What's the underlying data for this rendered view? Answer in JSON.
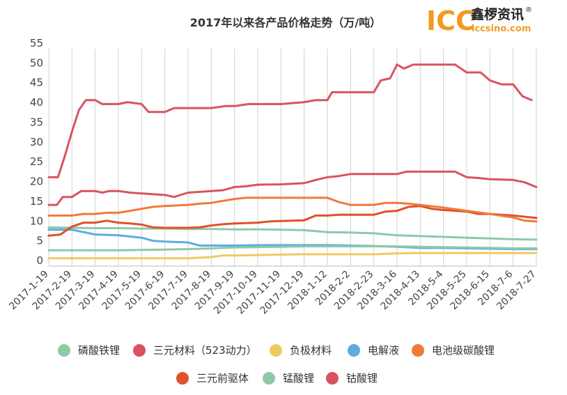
{
  "chart_data": {
    "type": "line",
    "title": "2017年以来各产品价格走势（万/吨）",
    "ylim": [
      0,
      55
    ],
    "yticks": [
      0,
      5,
      10,
      15,
      20,
      25,
      30,
      35,
      40,
      45,
      50,
      55
    ],
    "grid": "vertical",
    "legend_position": "bottom",
    "x_labels": [
      "2017-1-19",
      "2017-2-19",
      "2017-3-19",
      "2017-4-19",
      "2017-5-19",
      "2017-6-19",
      "2017-7-19",
      "2017-8-19",
      "2017-9-19",
      "2017-10-19",
      "2017-11-19",
      "2017-12-19",
      "2018-1-12",
      "2018-2-2",
      "2018-2-23",
      "2018-3-16",
      "2018-4-13",
      "2018-5-4",
      "2018-5-25",
      "2018-6-15",
      "2018-7-6",
      "2018-7-27"
    ],
    "series": [
      {
        "name": "磷酸铁锂",
        "color": "#8fc9a6",
        "values": [
          [
            0,
            9.8
          ],
          [
            1,
            9.7
          ],
          [
            2,
            9.6
          ],
          [
            3,
            9.6
          ],
          [
            4,
            9.5
          ],
          [
            5,
            9.5
          ],
          [
            6,
            9.4
          ],
          [
            7,
            9.4
          ],
          [
            8,
            9.3
          ],
          [
            9,
            9.3
          ],
          [
            10,
            9.2
          ],
          [
            11,
            9.1
          ],
          [
            12,
            8.6
          ],
          [
            13,
            8.5
          ],
          [
            14,
            8.3
          ],
          [
            15,
            7.8
          ],
          [
            16,
            7.6
          ],
          [
            17,
            7.4
          ],
          [
            18,
            7.2
          ],
          [
            19,
            7.0
          ],
          [
            20,
            6.8
          ],
          [
            21,
            6.7
          ]
        ]
      },
      {
        "name": "三元材料（523动力）",
        "color": "#d9535f",
        "values": [
          [
            0,
            15.5
          ],
          [
            0.35,
            15.5
          ],
          [
            0.6,
            17.5
          ],
          [
            1,
            17.5
          ],
          [
            1.4,
            19.0
          ],
          [
            2,
            19.0
          ],
          [
            2.3,
            18.6
          ],
          [
            2.6,
            19.0
          ],
          [
            3,
            19.0
          ],
          [
            3.5,
            18.6
          ],
          [
            4,
            18.4
          ],
          [
            5,
            18.0
          ],
          [
            5.4,
            17.5
          ],
          [
            6,
            18.6
          ],
          [
            6.5,
            18.8
          ],
          [
            7,
            19.0
          ],
          [
            7.5,
            19.2
          ],
          [
            8,
            20.0
          ],
          [
            8.5,
            20.2
          ],
          [
            9,
            20.6
          ],
          [
            10,
            20.7
          ],
          [
            11,
            21.0
          ],
          [
            11.5,
            21.8
          ],
          [
            12,
            22.5
          ],
          [
            12.5,
            22.8
          ],
          [
            13,
            23.3
          ],
          [
            14,
            23.3
          ],
          [
            15,
            23.3
          ],
          [
            15.4,
            23.9
          ],
          [
            16,
            23.9
          ],
          [
            17,
            23.9
          ],
          [
            17.5,
            23.9
          ],
          [
            18,
            22.5
          ],
          [
            18.5,
            22.3
          ],
          [
            19,
            22.0
          ],
          [
            20,
            21.8
          ],
          [
            20.5,
            21.2
          ],
          [
            21,
            20.0
          ]
        ]
      },
      {
        "name": "负极材料",
        "color": "#f0c960",
        "values": [
          [
            0,
            2.0
          ],
          [
            1,
            2.0
          ],
          [
            2,
            2.0
          ],
          [
            3,
            2.0
          ],
          [
            4,
            2.0
          ],
          [
            5,
            2.0
          ],
          [
            6,
            2.0
          ],
          [
            7,
            2.3
          ],
          [
            7.5,
            2.7
          ],
          [
            8,
            2.7
          ],
          [
            9,
            2.8
          ],
          [
            10,
            2.9
          ],
          [
            11,
            3.0
          ],
          [
            12,
            3.0
          ],
          [
            13,
            3.0
          ],
          [
            14,
            3.0
          ],
          [
            15,
            3.2
          ],
          [
            16,
            3.3
          ],
          [
            17,
            3.3
          ],
          [
            18,
            3.3
          ],
          [
            19,
            3.3
          ],
          [
            20,
            3.3
          ],
          [
            21,
            3.3
          ]
        ]
      },
      {
        "name": "电解液",
        "color": "#5aaee0",
        "values": [
          [
            0,
            9.2
          ],
          [
            1,
            9.2
          ],
          [
            2,
            8.0
          ],
          [
            3,
            7.8
          ],
          [
            4,
            7.2
          ],
          [
            4.5,
            6.4
          ],
          [
            5,
            6.2
          ],
          [
            6,
            6.0
          ],
          [
            6.5,
            5.2
          ],
          [
            7,
            5.2
          ],
          [
            8,
            5.2
          ],
          [
            9,
            5.3
          ],
          [
            10,
            5.3
          ],
          [
            11,
            5.3
          ],
          [
            12,
            5.3
          ],
          [
            13,
            5.2
          ],
          [
            14,
            5.1
          ],
          [
            15,
            4.9
          ],
          [
            16,
            4.6
          ],
          [
            17,
            4.6
          ],
          [
            18,
            4.5
          ],
          [
            19,
            4.4
          ],
          [
            20,
            4.3
          ],
          [
            21,
            4.3
          ]
        ]
      },
      {
        "name": "电池级碳酸锂",
        "color": "#f07a3a",
        "values": [
          [
            0,
            12.8
          ],
          [
            1,
            12.8
          ],
          [
            1.5,
            13.2
          ],
          [
            2,
            13.2
          ],
          [
            2.5,
            13.5
          ],
          [
            3,
            13.5
          ],
          [
            3.5,
            14.0
          ],
          [
            4,
            14.5
          ],
          [
            4.5,
            15.0
          ],
          [
            5,
            15.2
          ],
          [
            6,
            15.5
          ],
          [
            6.5,
            15.8
          ],
          [
            7,
            16.0
          ],
          [
            7.5,
            16.5
          ],
          [
            8,
            17.0
          ],
          [
            8.5,
            17.3
          ],
          [
            9,
            17.3
          ],
          [
            10,
            17.3
          ],
          [
            11,
            17.3
          ],
          [
            12,
            17.3
          ],
          [
            12.5,
            16.2
          ],
          [
            13,
            15.5
          ],
          [
            14,
            15.5
          ],
          [
            14.5,
            16.0
          ],
          [
            15,
            16.0
          ],
          [
            15.5,
            15.8
          ],
          [
            16,
            15.5
          ],
          [
            17,
            14.8
          ],
          [
            18,
            14.0
          ],
          [
            19,
            13.2
          ],
          [
            20,
            12.3
          ],
          [
            20.5,
            11.5
          ],
          [
            21,
            11.3
          ]
        ]
      },
      {
        "name": "三元前驱体",
        "color": "#e0502a",
        "values": [
          [
            0,
            7.7
          ],
          [
            0.5,
            8.0
          ],
          [
            1,
            10.0
          ],
          [
            1.5,
            11.0
          ],
          [
            2,
            11.0
          ],
          [
            2.5,
            11.5
          ],
          [
            3,
            11.0
          ],
          [
            3.5,
            10.8
          ],
          [
            4,
            10.5
          ],
          [
            4.5,
            9.8
          ],
          [
            5,
            9.7
          ],
          [
            6,
            9.7
          ],
          [
            6.5,
            9.8
          ],
          [
            7,
            10.3
          ],
          [
            7.5,
            10.6
          ],
          [
            8,
            10.8
          ],
          [
            9,
            11.0
          ],
          [
            9.5,
            11.3
          ],
          [
            10,
            11.4
          ],
          [
            11,
            11.6
          ],
          [
            11.5,
            12.8
          ],
          [
            12,
            12.8
          ],
          [
            12.5,
            13.0
          ],
          [
            13,
            13.0
          ],
          [
            14,
            13.0
          ],
          [
            14.5,
            13.8
          ],
          [
            15,
            14.0
          ],
          [
            15.5,
            15.0
          ],
          [
            16,
            15.2
          ],
          [
            16.5,
            14.5
          ],
          [
            17,
            14.2
          ],
          [
            18,
            13.8
          ],
          [
            18.5,
            13.2
          ],
          [
            19,
            13.2
          ],
          [
            20,
            12.8
          ],
          [
            21,
            12.2
          ]
        ]
      },
      {
        "name": "锰酸锂",
        "color": "#8fc9a6",
        "values": [
          [
            0,
            4.0
          ],
          [
            1,
            4.0
          ],
          [
            2,
            4.0
          ],
          [
            3,
            4.0
          ],
          [
            4,
            4.1
          ],
          [
            5,
            4.2
          ],
          [
            6,
            4.3
          ],
          [
            7,
            4.5
          ],
          [
            8,
            4.7
          ],
          [
            9,
            4.8
          ],
          [
            10,
            4.9
          ],
          [
            11,
            5.0
          ],
          [
            12,
            5.0
          ],
          [
            13,
            5.0
          ],
          [
            14,
            5.0
          ],
          [
            15,
            5.0
          ],
          [
            16,
            4.9
          ],
          [
            17,
            4.8
          ],
          [
            18,
            4.7
          ],
          [
            19,
            4.6
          ],
          [
            20,
            4.5
          ],
          [
            21,
            4.5
          ]
        ]
      },
      {
        "name": "钴酸锂",
        "color": "#d9535f",
        "values": [
          [
            0,
            22.5
          ],
          [
            0.4,
            22.5
          ],
          [
            0.7,
            28
          ],
          [
            1,
            34
          ],
          [
            1.3,
            39.5
          ],
          [
            1.6,
            42
          ],
          [
            2,
            42
          ],
          [
            2.3,
            41
          ],
          [
            3,
            41
          ],
          [
            3.4,
            41.5
          ],
          [
            4,
            41
          ],
          [
            4.3,
            39
          ],
          [
            5,
            39
          ],
          [
            5.4,
            40
          ],
          [
            6,
            40
          ],
          [
            7,
            40
          ],
          [
            7.6,
            40.5
          ],
          [
            8,
            40.5
          ],
          [
            8.6,
            41
          ],
          [
            9,
            41
          ],
          [
            10,
            41
          ],
          [
            11,
            41.5
          ],
          [
            11.5,
            42
          ],
          [
            12,
            42
          ],
          [
            12.2,
            44
          ],
          [
            13,
            44
          ],
          [
            14,
            44
          ],
          [
            14.3,
            47
          ],
          [
            14.7,
            47.5
          ],
          [
            15,
            51
          ],
          [
            15.3,
            50
          ],
          [
            15.7,
            51
          ],
          [
            16,
            51
          ],
          [
            17,
            51
          ],
          [
            17.5,
            51
          ],
          [
            18,
            49
          ],
          [
            18.6,
            49
          ],
          [
            19,
            47
          ],
          [
            19.5,
            46
          ],
          [
            20,
            46
          ],
          [
            20.4,
            43
          ],
          [
            20.8,
            42
          ]
        ]
      }
    ]
  },
  "legend": {
    "row1": [
      "磷酸铁锂",
      "三元材料（523动力）",
      "负极材料",
      "电解液",
      "电池级碳酸锂"
    ],
    "row2": [
      "三元前驱体",
      "锰酸锂",
      "钴酸锂"
    ]
  },
  "logo": {
    "brand": "ICC",
    "cn": "鑫椤资讯",
    "url": "iccsino.com",
    "reg": "®"
  }
}
